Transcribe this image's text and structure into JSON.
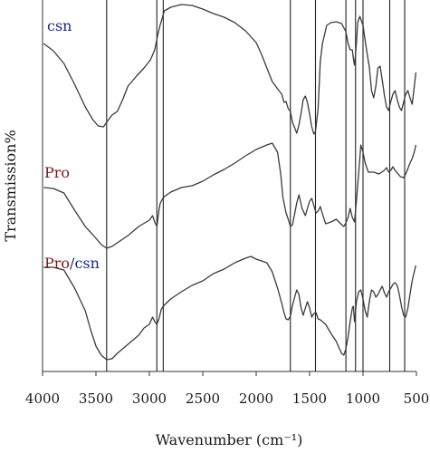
{
  "chart_data": {
    "type": "line",
    "title": "",
    "xlabel": "Wavenumber (cm⁻¹)",
    "ylabel": "Transmission%",
    "xlim": [
      4000,
      500
    ],
    "x_reversed": true,
    "x_ticks": [
      4000,
      3500,
      3000,
      2500,
      2000,
      1500,
      1000,
      500
    ],
    "grid": false,
    "legend": "inline labels at left of each trace",
    "reference_lines": [
      3400,
      2930,
      2870,
      1680,
      1445,
      1160,
      1070,
      1000,
      750,
      610
    ],
    "series": [
      {
        "name": "csn",
        "label_parts": [
          {
            "text": "csn",
            "color": "#1a2a7a"
          }
        ],
        "points": [
          [
            3990,
            48
          ],
          [
            3900,
            56
          ],
          [
            3800,
            70
          ],
          [
            3700,
            93
          ],
          [
            3600,
            118
          ],
          [
            3530,
            132
          ],
          [
            3480,
            139
          ],
          [
            3430,
            140
          ],
          [
            3400,
            135
          ],
          [
            3350,
            127
          ],
          [
            3300,
            123
          ],
          [
            3250,
            110
          ],
          [
            3200,
            95
          ],
          [
            3120,
            84
          ],
          [
            3050,
            75
          ],
          [
            2990,
            66
          ],
          [
            2950,
            55
          ],
          [
            2920,
            38
          ],
          [
            2900,
            28
          ],
          [
            2880,
            20
          ],
          [
            2860,
            12
          ],
          [
            2800,
            8
          ],
          [
            2700,
            5
          ],
          [
            2600,
            6
          ],
          [
            2500,
            10
          ],
          [
            2400,
            15
          ],
          [
            2300,
            19
          ],
          [
            2200,
            25
          ],
          [
            2100,
            34
          ],
          [
            2000,
            47
          ],
          [
            1950,
            60
          ],
          [
            1900,
            75
          ],
          [
            1850,
            90
          ],
          [
            1800,
            98
          ],
          [
            1760,
            104
          ],
          [
            1740,
            113
          ],
          [
            1720,
            112
          ],
          [
            1700,
            120
          ],
          [
            1680,
            123
          ],
          [
            1660,
            135
          ],
          [
            1640,
            141
          ],
          [
            1620,
            147
          ],
          [
            1600,
            138
          ],
          [
            1580,
            125
          ],
          [
            1560,
            110
          ],
          [
            1540,
            106
          ],
          [
            1520,
            113
          ],
          [
            1500,
            126
          ],
          [
            1480,
            140
          ],
          [
            1460,
            148
          ],
          [
            1445,
            145
          ],
          [
            1420,
            120
          ],
          [
            1400,
            68
          ],
          [
            1380,
            48
          ],
          [
            1340,
            28
          ],
          [
            1300,
            25
          ],
          [
            1250,
            24
          ],
          [
            1200,
            26
          ],
          [
            1160,
            35
          ],
          [
            1140,
            48
          ],
          [
            1120,
            55
          ],
          [
            1100,
            55
          ],
          [
            1090,
            65
          ],
          [
            1080,
            72
          ],
          [
            1070,
            60
          ],
          [
            1060,
            45
          ],
          [
            1050,
            25
          ],
          [
            1030,
            18
          ],
          [
            1000,
            28
          ],
          [
            980,
            45
          ],
          [
            960,
            60
          ],
          [
            940,
            75
          ],
          [
            920,
            100
          ],
          [
            900,
            108
          ],
          [
            880,
            95
          ],
          [
            860,
            75
          ],
          [
            840,
            73
          ],
          [
            820,
            88
          ],
          [
            800,
            105
          ],
          [
            780,
            118
          ],
          [
            760,
            122
          ],
          [
            740,
            112
          ],
          [
            720,
            104
          ],
          [
            700,
            100
          ],
          [
            680,
            110
          ],
          [
            660,
            118
          ],
          [
            640,
            122
          ],
          [
            620,
            113
          ],
          [
            600,
            104
          ],
          [
            580,
            100
          ],
          [
            560,
            108
          ],
          [
            540,
            115
          ],
          [
            520,
            96
          ],
          [
            505,
            80
          ]
        ]
      },
      {
        "name": "Pro",
        "label_parts": [
          {
            "text": "Pro",
            "color": "#7a1a1a"
          }
        ],
        "points": [
          [
            3990,
            207
          ],
          [
            3900,
            208
          ],
          [
            3800,
            213
          ],
          [
            3700,
            232
          ],
          [
            3600,
            250
          ],
          [
            3500,
            263
          ],
          [
            3450,
            270
          ],
          [
            3400,
            274
          ],
          [
            3350,
            272
          ],
          [
            3300,
            268
          ],
          [
            3200,
            260
          ],
          [
            3100,
            250
          ],
          [
            3000,
            243
          ],
          [
            2970,
            238
          ],
          [
            2950,
            245
          ],
          [
            2930,
            250
          ],
          [
            2910,
            232
          ],
          [
            2900,
            225
          ],
          [
            2880,
            220
          ],
          [
            2860,
            217
          ],
          [
            2800,
            212
          ],
          [
            2700,
            207
          ],
          [
            2600,
            205
          ],
          [
            2500,
            200
          ],
          [
            2400,
            193
          ],
          [
            2300,
            187
          ],
          [
            2200,
            180
          ],
          [
            2100,
            172
          ],
          [
            2000,
            165
          ],
          [
            1900,
            160
          ],
          [
            1850,
            158
          ],
          [
            1800,
            168
          ],
          [
            1770,
            192
          ],
          [
            1750,
            218
          ],
          [
            1720,
            235
          ],
          [
            1700,
            242
          ],
          [
            1680,
            250
          ],
          [
            1660,
            248
          ],
          [
            1640,
            236
          ],
          [
            1620,
            224
          ],
          [
            1600,
            215
          ],
          [
            1570,
            230
          ],
          [
            1540,
            238
          ],
          [
            1520,
            230
          ],
          [
            1500,
            222
          ],
          [
            1480,
            219
          ],
          [
            1460,
            227
          ],
          [
            1440,
            235
          ],
          [
            1420,
            233
          ],
          [
            1400,
            228
          ],
          [
            1380,
            236
          ],
          [
            1350,
            247
          ],
          [
            1300,
            245
          ],
          [
            1250,
            242
          ],
          [
            1200,
            248
          ],
          [
            1180,
            250
          ],
          [
            1160,
            246
          ],
          [
            1140,
            240
          ],
          [
            1120,
            230
          ],
          [
            1100,
            240
          ],
          [
            1080,
            245
          ],
          [
            1060,
            220
          ],
          [
            1040,
            190
          ],
          [
            1020,
            160
          ],
          [
            1000,
            168
          ],
          [
            980,
            180
          ],
          [
            950,
            190
          ],
          [
            900,
            190
          ],
          [
            850,
            192
          ],
          [
            800,
            188
          ],
          [
            780,
            185
          ],
          [
            760,
            190
          ],
          [
            740,
            188
          ],
          [
            720,
            184
          ],
          [
            700,
            188
          ],
          [
            650,
            195
          ],
          [
            620,
            196
          ],
          [
            600,
            192
          ],
          [
            580,
            186
          ],
          [
            560,
            180
          ],
          [
            540,
            175
          ],
          [
            520,
            168
          ],
          [
            505,
            160
          ]
        ]
      },
      {
        "name": "Pro/csn",
        "label_parts": [
          {
            "text": "Pro",
            "color": "#7a1a1a"
          },
          {
            "text": "/csn",
            "color": "#1a2a7a"
          }
        ],
        "points": [
          [
            3990,
            295
          ],
          [
            3900,
            295
          ],
          [
            3800,
            298
          ],
          [
            3700,
            318
          ],
          [
            3600,
            343
          ],
          [
            3550,
            364
          ],
          [
            3500,
            382
          ],
          [
            3450,
            392
          ],
          [
            3400,
            397
          ],
          [
            3350,
            396
          ],
          [
            3300,
            390
          ],
          [
            3200,
            380
          ],
          [
            3100,
            370
          ],
          [
            3050,
            362
          ],
          [
            3000,
            358
          ],
          [
            2970,
            350
          ],
          [
            2950,
            355
          ],
          [
            2930,
            358
          ],
          [
            2910,
            352
          ],
          [
            2890,
            342
          ],
          [
            2870,
            338
          ],
          [
            2800,
            330
          ],
          [
            2700,
            322
          ],
          [
            2600,
            315
          ],
          [
            2500,
            310
          ],
          [
            2400,
            302
          ],
          [
            2300,
            297
          ],
          [
            2200,
            290
          ],
          [
            2100,
            285
          ],
          [
            2050,
            283
          ],
          [
            2000,
            286
          ],
          [
            1900,
            290
          ],
          [
            1850,
            300
          ],
          [
            1800,
            318
          ],
          [
            1760,
            335
          ],
          [
            1740,
            345
          ],
          [
            1720,
            352
          ],
          [
            1700,
            353
          ],
          [
            1680,
            349
          ],
          [
            1660,
            337
          ],
          [
            1640,
            328
          ],
          [
            1620,
            320
          ],
          [
            1600,
            325
          ],
          [
            1580,
            340
          ],
          [
            1560,
            348
          ],
          [
            1540,
            340
          ],
          [
            1520,
            333
          ],
          [
            1500,
            340
          ],
          [
            1480,
            350
          ],
          [
            1460,
            346
          ],
          [
            1440,
            345
          ],
          [
            1420,
            352
          ],
          [
            1400,
            353
          ],
          [
            1380,
            355
          ],
          [
            1350,
            358
          ],
          [
            1300,
            368
          ],
          [
            1250,
            377
          ],
          [
            1220,
            385
          ],
          [
            1200,
            390
          ],
          [
            1180,
            392
          ],
          [
            1160,
            385
          ],
          [
            1140,
            372
          ],
          [
            1120,
            355
          ],
          [
            1100,
            340
          ],
          [
            1090,
            338
          ],
          [
            1080,
            355
          ],
          [
            1060,
            332
          ],
          [
            1040,
            322
          ],
          [
            1020,
            320
          ],
          [
            1000,
            330
          ],
          [
            980,
            343
          ],
          [
            960,
            350
          ],
          [
            940,
            332
          ],
          [
            920,
            320
          ],
          [
            900,
            322
          ],
          [
            880,
            328
          ],
          [
            860,
            325
          ],
          [
            840,
            320
          ],
          [
            820,
            316
          ],
          [
            800,
            323
          ],
          [
            780,
            328
          ],
          [
            760,
            322
          ],
          [
            740,
            318
          ],
          [
            720,
            314
          ],
          [
            700,
            312
          ],
          [
            680,
            315
          ],
          [
            660,
            325
          ],
          [
            640,
            338
          ],
          [
            620,
            348
          ],
          [
            600,
            350
          ],
          [
            580,
            340
          ],
          [
            560,
            325
          ],
          [
            540,
            310
          ],
          [
            520,
            300
          ],
          [
            505,
            293
          ]
        ]
      }
    ]
  }
}
